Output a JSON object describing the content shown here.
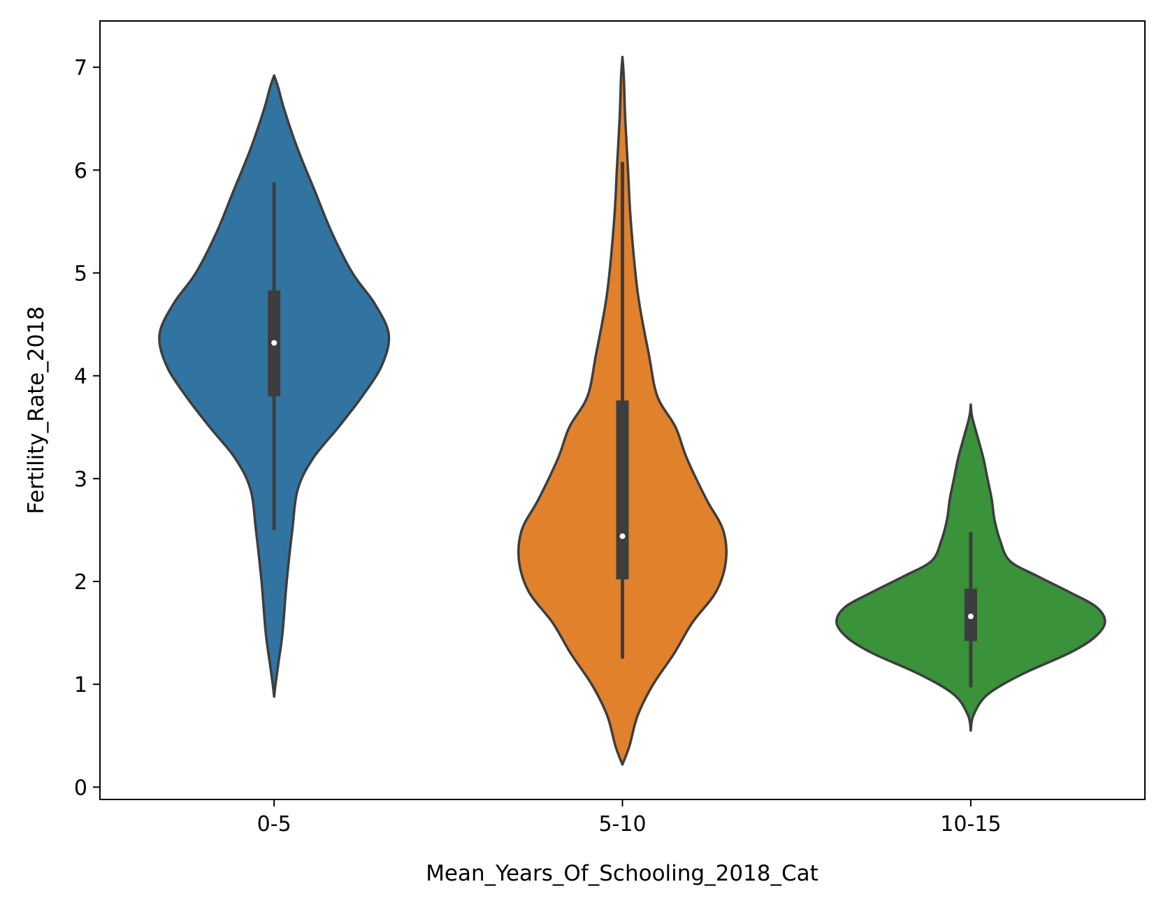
{
  "chart_data": {
    "type": "violin",
    "title": "",
    "xlabel": "Mean_Years_Of_Schooling_2018_Cat",
    "ylabel": "Fertility_Rate_2018",
    "ylim": [
      -0.12,
      7.45
    ],
    "yticks": [
      0,
      1,
      2,
      3,
      4,
      5,
      6,
      7
    ],
    "categories": [
      "0-5",
      "5-10",
      "10-15"
    ],
    "colors": [
      "#3274a1",
      "#e1812c",
      "#3a923a"
    ],
    "outline_color": "#3d3d3d",
    "grid": false,
    "series": [
      {
        "category": "0-5",
        "median": 4.32,
        "q1": 3.8,
        "q3": 4.83,
        "whisker_low": 2.5,
        "whisker_high": 5.88,
        "density": [
          [
            0.88,
            0.0
          ],
          [
            1.0,
            0.01
          ],
          [
            1.2,
            0.03
          ],
          [
            1.5,
            0.06
          ],
          [
            2.0,
            0.09
          ],
          [
            2.5,
            0.13
          ],
          [
            2.9,
            0.17
          ],
          [
            3.2,
            0.28
          ],
          [
            3.5,
            0.46
          ],
          [
            3.8,
            0.63
          ],
          [
            4.1,
            0.77
          ],
          [
            4.4,
            0.82
          ],
          [
            4.7,
            0.72
          ],
          [
            5.0,
            0.56
          ],
          [
            5.4,
            0.41
          ],
          [
            5.8,
            0.29
          ],
          [
            6.2,
            0.17
          ],
          [
            6.6,
            0.07
          ],
          [
            6.8,
            0.03
          ],
          [
            6.92,
            0.0
          ]
        ]
      },
      {
        "category": "5-10",
        "median": 2.44,
        "q1": 2.02,
        "q3": 3.76,
        "whisker_low": 1.25,
        "whisker_high": 6.08,
        "density": [
          [
            0.22,
            0.0
          ],
          [
            0.4,
            0.05
          ],
          [
            0.7,
            0.11
          ],
          [
            1.0,
            0.22
          ],
          [
            1.3,
            0.37
          ],
          [
            1.6,
            0.5
          ],
          [
            1.9,
            0.67
          ],
          [
            2.2,
            0.74
          ],
          [
            2.5,
            0.72
          ],
          [
            2.8,
            0.6
          ],
          [
            3.2,
            0.46
          ],
          [
            3.5,
            0.38
          ],
          [
            3.8,
            0.25
          ],
          [
            4.2,
            0.19
          ],
          [
            4.8,
            0.11
          ],
          [
            5.5,
            0.06
          ],
          [
            6.0,
            0.04
          ],
          [
            6.5,
            0.02
          ],
          [
            6.9,
            0.01
          ],
          [
            7.1,
            0.0
          ]
        ]
      },
      {
        "category": "10-15",
        "median": 1.66,
        "q1": 1.42,
        "q3": 1.93,
        "whisker_low": 0.97,
        "whisker_high": 2.48,
        "density": [
          [
            0.55,
            0.0
          ],
          [
            0.7,
            0.02
          ],
          [
            0.9,
            0.12
          ],
          [
            1.1,
            0.37
          ],
          [
            1.3,
            0.7
          ],
          [
            1.45,
            0.88
          ],
          [
            1.6,
            0.96
          ],
          [
            1.75,
            0.9
          ],
          [
            1.9,
            0.7
          ],
          [
            2.05,
            0.48
          ],
          [
            2.2,
            0.28
          ],
          [
            2.4,
            0.21
          ],
          [
            2.6,
            0.17
          ],
          [
            2.8,
            0.15
          ],
          [
            3.0,
            0.12
          ],
          [
            3.2,
            0.09
          ],
          [
            3.4,
            0.05
          ],
          [
            3.6,
            0.01
          ],
          [
            3.72,
            0.0
          ]
        ]
      }
    ]
  }
}
